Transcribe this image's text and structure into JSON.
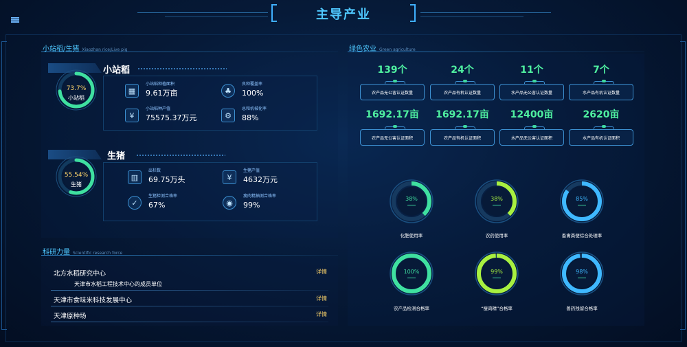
{
  "header": {
    "title": "主导产业"
  },
  "rice_pig": {
    "section_title": "小站稻/生猪",
    "section_title_en": "Xiaozhan rice/Live pig",
    "rice": {
      "heading": "小站稻",
      "ring_value": 73.7,
      "ring_percent": "73.7%",
      "ring_label": "小站稻",
      "stats": [
        {
          "label": "小站稻种植面积",
          "value": "9.61万亩",
          "icon": "field-icon"
        },
        {
          "label": "良种覆盖率",
          "value": "100%",
          "icon": "seed-icon"
        },
        {
          "label": "小站稻种产值",
          "value": "75575.37万元",
          "icon": "yuan-icon"
        },
        {
          "label": "总和机械化率",
          "value": "88%",
          "icon": "tractor-icon"
        }
      ]
    },
    "pig": {
      "heading": "生猪",
      "ring_value": 55.54,
      "ring_percent": "55.54%",
      "ring_label": "生猪",
      "stats": [
        {
          "label": "出栏数",
          "value": "69.75万头",
          "icon": "fence-icon"
        },
        {
          "label": "生猪产值",
          "value": "4632万元",
          "icon": "yuan-icon"
        },
        {
          "label": "生猪检测合格率",
          "value": "67%",
          "icon": "check-icon"
        },
        {
          "label": "瘦肉精抽测合格率",
          "value": "99%",
          "icon": "pig-icon"
        }
      ]
    }
  },
  "green": {
    "section_title": "绿色农业",
    "section_title_en": "Green agriculture",
    "cards_row1": [
      {
        "value": "139个",
        "label": "农产品无公害认证数量"
      },
      {
        "value": "24个",
        "label": "农产品有机认证数量"
      },
      {
        "value": "11个",
        "label": "水产品无公害认证数量"
      },
      {
        "value": "7个",
        "label": "水产品有机认证数量"
      }
    ],
    "cards_row2": [
      {
        "value": "1692.17亩",
        "label": "农产品无公害认证面积"
      },
      {
        "value": "1692.17亩",
        "label": "农产品有机认证面积"
      },
      {
        "value": "12400亩",
        "label": "水产品无公害认证面积"
      },
      {
        "value": "2620亩",
        "label": "水产品有机认证面积"
      }
    ],
    "gauges": [
      {
        "percent": "38%",
        "value": 38,
        "label": "化肥使用率",
        "color": "#3fe0a0"
      },
      {
        "percent": "38%",
        "value": 38,
        "label": "农药使用率",
        "color": "#a8f040"
      },
      {
        "percent": "85%",
        "value": 85,
        "label": "畜禽粪便综合处理率",
        "color": "#3fb8ff"
      },
      {
        "percent": "100%",
        "value": 100,
        "label": "农产品检测合格率",
        "color": "#3fe0a0"
      },
      {
        "percent": "99%",
        "value": 99,
        "label": "“瘦肉精”合格率",
        "color": "#a8f040"
      },
      {
        "percent": "98%",
        "value": 98,
        "label": "兽药残留合格率",
        "color": "#3fb8ff"
      }
    ]
  },
  "research": {
    "section_title": "科研力量",
    "section_title_en": "Scientific research force",
    "items": [
      {
        "name": "北方水稻研究中心",
        "sub": "天津市水稻工程技术中心的成员单位",
        "link": "详情"
      },
      {
        "name": "天津市食味米科技发展中心",
        "sub": "",
        "link": "详情"
      },
      {
        "name": "天津原种场",
        "sub": "",
        "link": "详情"
      }
    ]
  },
  "colors": {
    "accent": "#4fc8ff",
    "green": "#4ff0a0",
    "gold": "#ffd66b"
  }
}
